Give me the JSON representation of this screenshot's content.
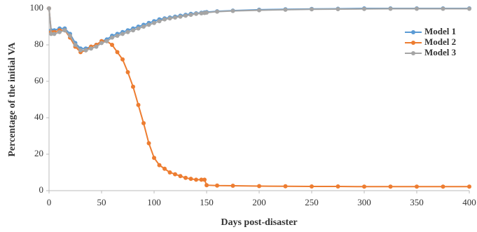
{
  "chart_data": {
    "type": "line",
    "xlabel": "Days post-disaster",
    "ylabel": "Percentage of the initial VA",
    "x": [
      0,
      2,
      5,
      10,
      15,
      20,
      25,
      30,
      35,
      40,
      45,
      50,
      55,
      60,
      65,
      70,
      75,
      80,
      85,
      90,
      95,
      100,
      105,
      110,
      115,
      120,
      125,
      130,
      135,
      140,
      145,
      148,
      150,
      160,
      175,
      200,
      225,
      250,
      275,
      300,
      325,
      350,
      375,
      400
    ],
    "series": [
      {
        "name": "Model 1",
        "color": "#5b9bd5",
        "values": [
          100,
          88,
          88,
          89,
          89,
          86,
          81,
          78,
          78,
          79,
          80,
          82,
          83,
          85,
          86,
          87,
          88,
          89,
          90,
          91,
          92,
          93,
          94,
          94.5,
          95,
          95.5,
          96,
          96.5,
          97,
          97.3,
          97.6,
          97.8,
          98,
          98.4,
          98.8,
          99.3,
          99.5,
          99.7,
          99.8,
          100,
          100,
          100,
          100,
          100
        ]
      },
      {
        "name": "Model 2",
        "color": "#ed7d31",
        "values": [
          100,
          87,
          87,
          88,
          88,
          84,
          79,
          76,
          77,
          79,
          80,
          82,
          82,
          80,
          76,
          72,
          65,
          57,
          47,
          37,
          26,
          18,
          14,
          12,
          10,
          9,
          8,
          7,
          6.5,
          6,
          6,
          6,
          3,
          2.8,
          2.7,
          2.5,
          2.4,
          2.3,
          2.3,
          2.2,
          2.2,
          2.2,
          2.2,
          2.2
        ]
      },
      {
        "name": "Model 3",
        "color": "#a5a5a5",
        "values": [
          100,
          86,
          86,
          87,
          88,
          85,
          80,
          77,
          77,
          78,
          79,
          81,
          82,
          84,
          85,
          86,
          87,
          88,
          89,
          90,
          91,
          92,
          93,
          94,
          94.5,
          95,
          95.5,
          96,
          96.5,
          97,
          97.3,
          97.5,
          97.7,
          98.2,
          98.6,
          99,
          99.3,
          99.5,
          99.6,
          99.7,
          99.8,
          99.8,
          99.8,
          99.8
        ]
      }
    ],
    "xlim": [
      0,
      400
    ],
    "xticks": [
      0,
      50,
      100,
      150,
      200,
      250,
      300,
      350,
      400
    ],
    "ylim": [
      0,
      100
    ],
    "yticks": [
      0,
      20,
      40,
      60,
      80,
      100
    ],
    "grid": false,
    "legend": "upper right"
  }
}
